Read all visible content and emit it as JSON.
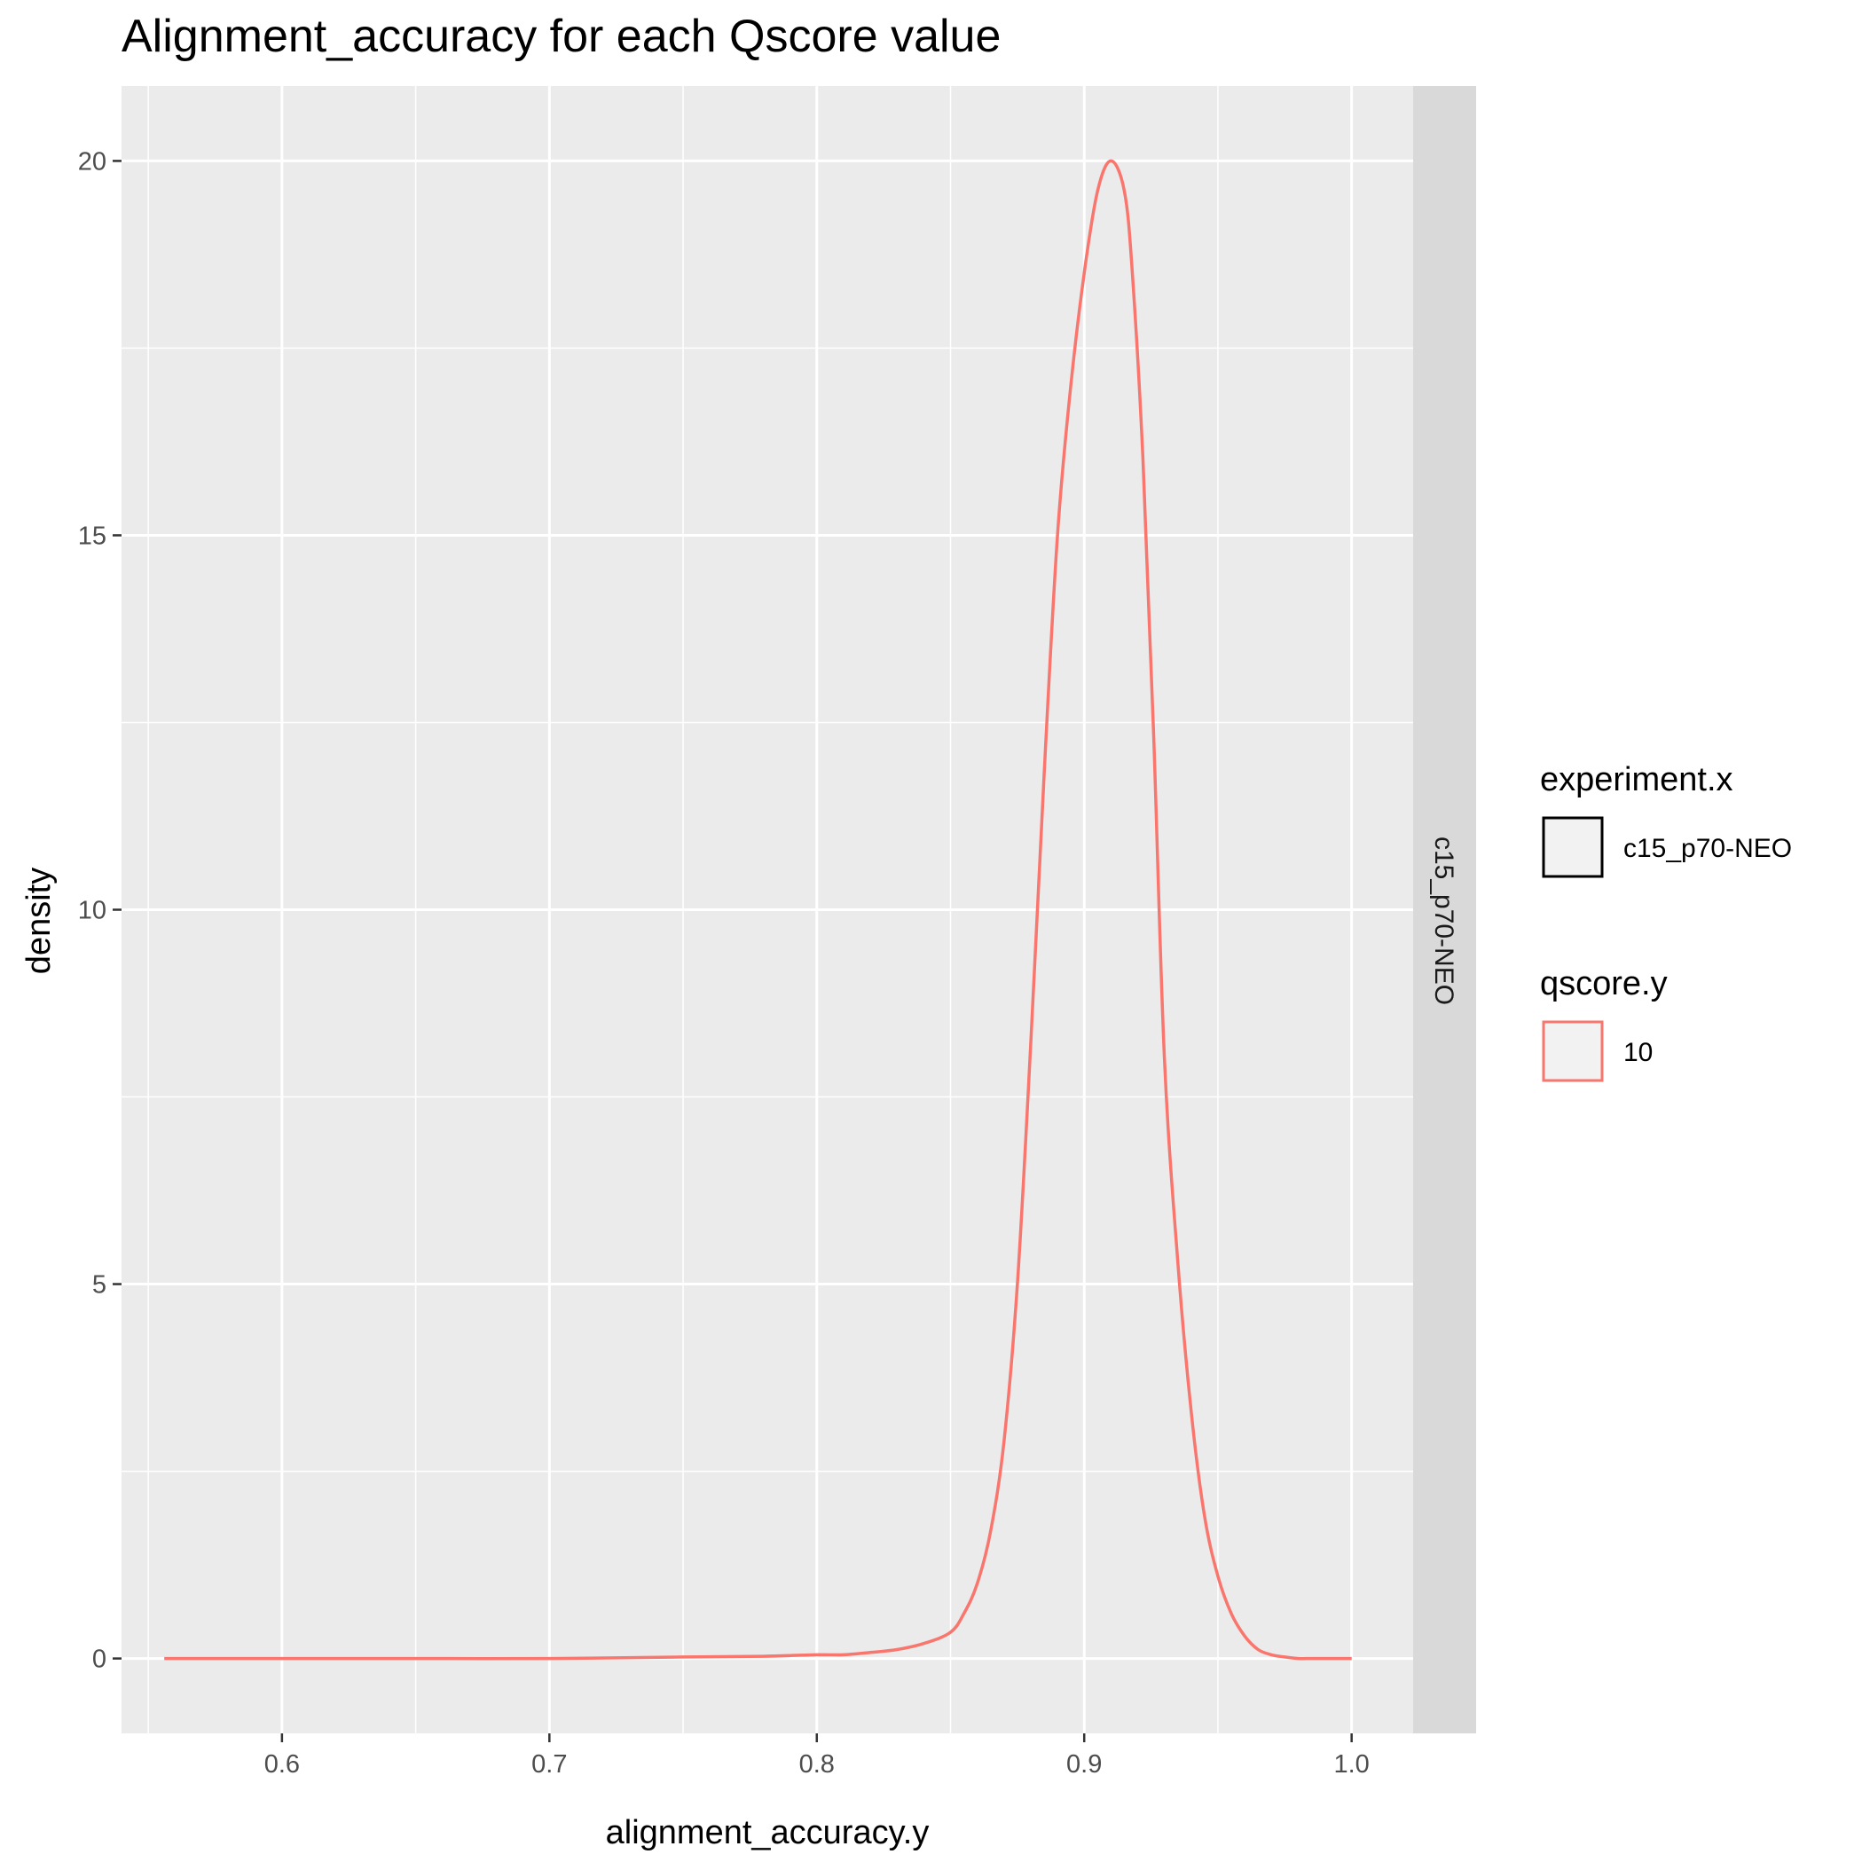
{
  "chart_data": {
    "type": "line",
    "title": "Alignment_accuracy for each Qscore value",
    "xlabel": "alignment_accuracy.y",
    "ylabel": "density",
    "xlim": [
      0.54,
      1.023
    ],
    "ylim": [
      -1.0,
      21.0
    ],
    "x_ticks": [
      0.6,
      0.7,
      0.8,
      0.9,
      1.0
    ],
    "x_tick_labels": [
      "0.6",
      "0.7",
      "0.8",
      "0.9",
      "1.0"
    ],
    "y_ticks": [
      0,
      5,
      10,
      15,
      20
    ],
    "y_tick_labels": [
      "0",
      "5",
      "10",
      "15",
      "20"
    ],
    "grid": true,
    "facet_label": "c15_p70-NEO",
    "legend_position": "right",
    "legends": [
      {
        "title": "experiment.x",
        "entries": [
          {
            "label": "c15_p70-NEO",
            "color": "#000000"
          }
        ]
      },
      {
        "title": "qscore.y",
        "entries": [
          {
            "label": "10",
            "color": "#F8766D"
          }
        ]
      }
    ],
    "series": [
      {
        "name": "10",
        "color": "#F8766D",
        "x": [
          0.556,
          0.6,
          0.65,
          0.7,
          0.75,
          0.78,
          0.8,
          0.81,
          0.82,
          0.83,
          0.84,
          0.85,
          0.855,
          0.86,
          0.865,
          0.87,
          0.875,
          0.88,
          0.885,
          0.89,
          0.895,
          0.9,
          0.905,
          0.91,
          0.915,
          0.918,
          0.922,
          0.926,
          0.93,
          0.935,
          0.94,
          0.945,
          0.95,
          0.955,
          0.96,
          0.965,
          0.97,
          0.975,
          0.98,
          0.985,
          0.99,
          1.0
        ],
        "y": [
          0.0,
          0.0,
          0.0,
          0.0,
          0.02,
          0.03,
          0.05,
          0.05,
          0.08,
          0.12,
          0.2,
          0.35,
          0.6,
          1.0,
          1.7,
          2.9,
          5.0,
          8.2,
          11.8,
          15.0,
          17.0,
          18.5,
          19.6,
          20.0,
          19.6,
          18.5,
          16.0,
          12.3,
          8.0,
          5.3,
          3.3,
          1.9,
          1.1,
          0.6,
          0.3,
          0.12,
          0.05,
          0.02,
          0.0,
          0.0,
          0.0,
          0.0
        ]
      }
    ]
  }
}
